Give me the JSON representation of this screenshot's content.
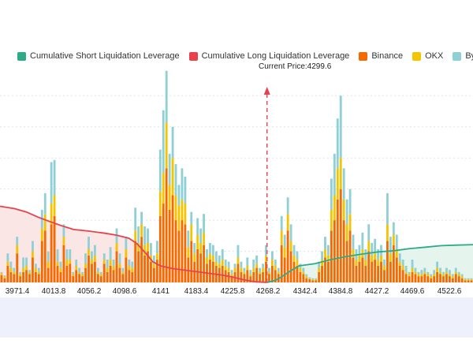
{
  "colors": {
    "short": "#2bab86",
    "long": "#e8414d",
    "binance": "#f56a00",
    "okx": "#f5c400",
    "bybit": "#8fcfd6",
    "short_fill": "#e6f4ee",
    "long_fill": "#fbe6e6",
    "current_price_line": "#e8414d"
  },
  "legend": [
    {
      "label": "Cumulative Short Liquidation Leverage",
      "color": "#2bab86"
    },
    {
      "label": "Cumulative Long Liquidation Leverage",
      "color": "#e8414d"
    },
    {
      "label": "Binance",
      "color": "#f56a00"
    },
    {
      "label": "OKX",
      "color": "#f5c400"
    },
    {
      "label": "Bybit",
      "color": "#8fcfd6"
    }
  ],
  "current_price_label": "Current Price:4299.6",
  "chart_data": {
    "type": "bar",
    "title": "",
    "xlabel": "",
    "ylabel": "",
    "x_ticks": [
      "3971.4",
      "4013.8",
      "4056.2",
      "4098.6",
      "4141",
      "4183.4",
      "4225.8",
      "4268.2",
      "4342.4",
      "4384.8",
      "4427.2",
      "4469.6",
      "4522.6"
    ],
    "x_range": [
      3962,
      4560
    ],
    "current_price": 4299.6,
    "grid": true,
    "y_range": [
      0,
      100
    ],
    "stacked_series": [
      "Binance",
      "OKX",
      "Bybit"
    ],
    "bars": [
      [
        3.5,
        1,
        0.5
      ],
      [
        2,
        0.8,
        0.6
      ],
      [
        8,
        2,
        4
      ],
      [
        5,
        2,
        3
      ],
      [
        4,
        1,
        2
      ],
      [
        14,
        4,
        4
      ],
      [
        3,
        1,
        1
      ],
      [
        5,
        2,
        5
      ],
      [
        6,
        2,
        4
      ],
      [
        4,
        1,
        1
      ],
      [
        12,
        3,
        5
      ],
      [
        5,
        2,
        2
      ],
      [
        4,
        1,
        2
      ],
      [
        20,
        6,
        9
      ],
      [
        25,
        8,
        10
      ],
      [
        7,
        3,
        5
      ],
      [
        28,
        10,
        20
      ],
      [
        32,
        10,
        17
      ],
      [
        8,
        2,
        6
      ],
      [
        5,
        2,
        3
      ],
      [
        18,
        4,
        6
      ],
      [
        8,
        3,
        5
      ],
      [
        9,
        2,
        5
      ],
      [
        3,
        1,
        1
      ],
      [
        6,
        2,
        3
      ],
      [
        4,
        1,
        2
      ],
      [
        3,
        1,
        1
      ],
      [
        7,
        2,
        5
      ],
      [
        13,
        3,
        6
      ],
      [
        9,
        2,
        4
      ],
      [
        10,
        3,
        5
      ],
      [
        4,
        1,
        2
      ],
      [
        3,
        1,
        1
      ],
      [
        9,
        2,
        3
      ],
      [
        5,
        2,
        4
      ],
      [
        8,
        3,
        6
      ],
      [
        6,
        2,
        3
      ],
      [
        15,
        4,
        7
      ],
      [
        7,
        2,
        5
      ],
      [
        4,
        1,
        2
      ],
      [
        12,
        4,
        6
      ],
      [
        6,
        2,
        3
      ],
      [
        5,
        2,
        3
      ],
      [
        20,
        5,
        11
      ],
      [
        15,
        4,
        8
      ],
      [
        22,
        6,
        6
      ],
      [
        13,
        5,
        9
      ],
      [
        15,
        4,
        7
      ],
      [
        10,
        3,
        6
      ],
      [
        7,
        2,
        4
      ],
      [
        11,
        3,
        6
      ],
      [
        32,
        12,
        20
      ],
      [
        38,
        15,
        30
      ],
      [
        55,
        22,
        25
      ],
      [
        35,
        12,
        15
      ],
      [
        42,
        18,
        15
      ],
      [
        30,
        12,
        15
      ],
      [
        25,
        12,
        10
      ],
      [
        30,
        10,
        15
      ],
      [
        28,
        10,
        13
      ],
      [
        12,
        5,
        8
      ],
      [
        20,
        8,
        6
      ],
      [
        10,
        4,
        5
      ],
      [
        16,
        7,
        8
      ],
      [
        14,
        5,
        7
      ],
      [
        18,
        6,
        9
      ],
      [
        9,
        3,
        4
      ],
      [
        11,
        3,
        5
      ],
      [
        10,
        3,
        5
      ],
      [
        8,
        2,
        5
      ],
      [
        7,
        2,
        4
      ],
      [
        8,
        3,
        5
      ],
      [
        6,
        2,
        3
      ],
      [
        5,
        2,
        3
      ],
      [
        3,
        1,
        2
      ],
      [
        5,
        2,
        2
      ],
      [
        9,
        3,
        6
      ],
      [
        5,
        2,
        3
      ],
      [
        4,
        1,
        2
      ],
      [
        6,
        2,
        4
      ],
      [
        3,
        1,
        2
      ],
      [
        5,
        2,
        4
      ],
      [
        7,
        2,
        4
      ],
      [
        4,
        1,
        2
      ],
      [
        5,
        2,
        2
      ],
      [
        10,
        3,
        5
      ],
      [
        4,
        1,
        2
      ],
      [
        8,
        3,
        4
      ],
      [
        6,
        2,
        3
      ],
      [
        4,
        1,
        2
      ],
      [
        18,
        7,
        7
      ],
      [
        12,
        5,
        6
      ],
      [
        25,
        8,
        8
      ],
      [
        15,
        5,
        8
      ],
      [
        10,
        3,
        5
      ],
      [
        8,
        3,
        4
      ],
      [
        5,
        2,
        2
      ],
      [
        4,
        1,
        2
      ],
      [
        2,
        1,
        1
      ],
      [
        1.5,
        0.5,
        0.5
      ],
      [
        1,
        0.5,
        0.5
      ],
      [
        1,
        0.5,
        0.5
      ],
      [
        5,
        2,
        3
      ],
      [
        8,
        3,
        4
      ],
      [
        12,
        4,
        6
      ],
      [
        10,
        3,
        5
      ],
      [
        25,
        10,
        15
      ],
      [
        30,
        12,
        20
      ],
      [
        40,
        15,
        24
      ],
      [
        45,
        15,
        30
      ],
      [
        30,
        10,
        15
      ],
      [
        20,
        8,
        12
      ],
      [
        25,
        8,
        12
      ],
      [
        12,
        4,
        7
      ],
      [
        8,
        3,
        5
      ],
      [
        10,
        3,
        5
      ],
      [
        12,
        4,
        8
      ],
      [
        8,
        3,
        5
      ],
      [
        15,
        5,
        8
      ],
      [
        10,
        3,
        6
      ],
      [
        11,
        3,
        7
      ],
      [
        8,
        3,
        5
      ],
      [
        10,
        3,
        5
      ],
      [
        6,
        2,
        3
      ],
      [
        20,
        8,
        15
      ],
      [
        10,
        4,
        8
      ],
      [
        18,
        5,
        6
      ],
      [
        12,
        4,
        7
      ],
      [
        8,
        2,
        4
      ],
      [
        6,
        2,
        3
      ],
      [
        4,
        1,
        3
      ],
      [
        3,
        1,
        1
      ],
      [
        5,
        2,
        4
      ],
      [
        4,
        1,
        2
      ],
      [
        3,
        1,
        1
      ],
      [
        3,
        1,
        2
      ],
      [
        4,
        1,
        2
      ],
      [
        3,
        1,
        1
      ],
      [
        2,
        1,
        1
      ],
      [
        3,
        1,
        2
      ],
      [
        5,
        2,
        3
      ],
      [
        4,
        1,
        2
      ],
      [
        3,
        1,
        1
      ],
      [
        4,
        1,
        2
      ],
      [
        3,
        1,
        2
      ],
      [
        2,
        1,
        1
      ],
      [
        4,
        1,
        2
      ],
      [
        3,
        1,
        1
      ],
      [
        2,
        1,
        1
      ],
      [
        1,
        0.5,
        0.5
      ],
      [
        1,
        0.5,
        0.5
      ],
      [
        1,
        0.5,
        0.5
      ]
    ],
    "long_curve": [
      [
        3962,
        36.7
      ],
      [
        3980,
        35.6
      ],
      [
        3995,
        34.0
      ],
      [
        4010,
        31.5
      ],
      [
        4025,
        29.3
      ],
      [
        4040,
        27.3
      ],
      [
        4055,
        25.5
      ],
      [
        4075,
        24.7
      ],
      [
        4095,
        23.7
      ],
      [
        4110,
        22.7
      ],
      [
        4125,
        21.3
      ],
      [
        4135,
        18.7
      ],
      [
        4140,
        16.7
      ],
      [
        4148,
        13.3
      ],
      [
        4155,
        10.0
      ],
      [
        4165,
        8.0
      ],
      [
        4180,
        6.7
      ],
      [
        4200,
        5.7
      ],
      [
        4220,
        4.7
      ],
      [
        4240,
        3.7
      ],
      [
        4255,
        2.7
      ],
      [
        4270,
        1.3
      ],
      [
        4285,
        0.3
      ],
      [
        4299.6,
        0
      ]
    ],
    "short_curve": [
      [
        4299.6,
        0
      ],
      [
        4310,
        1.0
      ],
      [
        4318,
        2.7
      ],
      [
        4328,
        5.3
      ],
      [
        4340,
        8.0
      ],
      [
        4360,
        9.0
      ],
      [
        4380,
        11.0
      ],
      [
        4400,
        12.5
      ],
      [
        4420,
        13.7
      ],
      [
        4440,
        14.7
      ],
      [
        4460,
        15.3
      ],
      [
        4480,
        16.3
      ],
      [
        4500,
        17.0
      ],
      [
        4520,
        17.7
      ],
      [
        4540,
        18.0
      ],
      [
        4560,
        18.2
      ]
    ]
  }
}
